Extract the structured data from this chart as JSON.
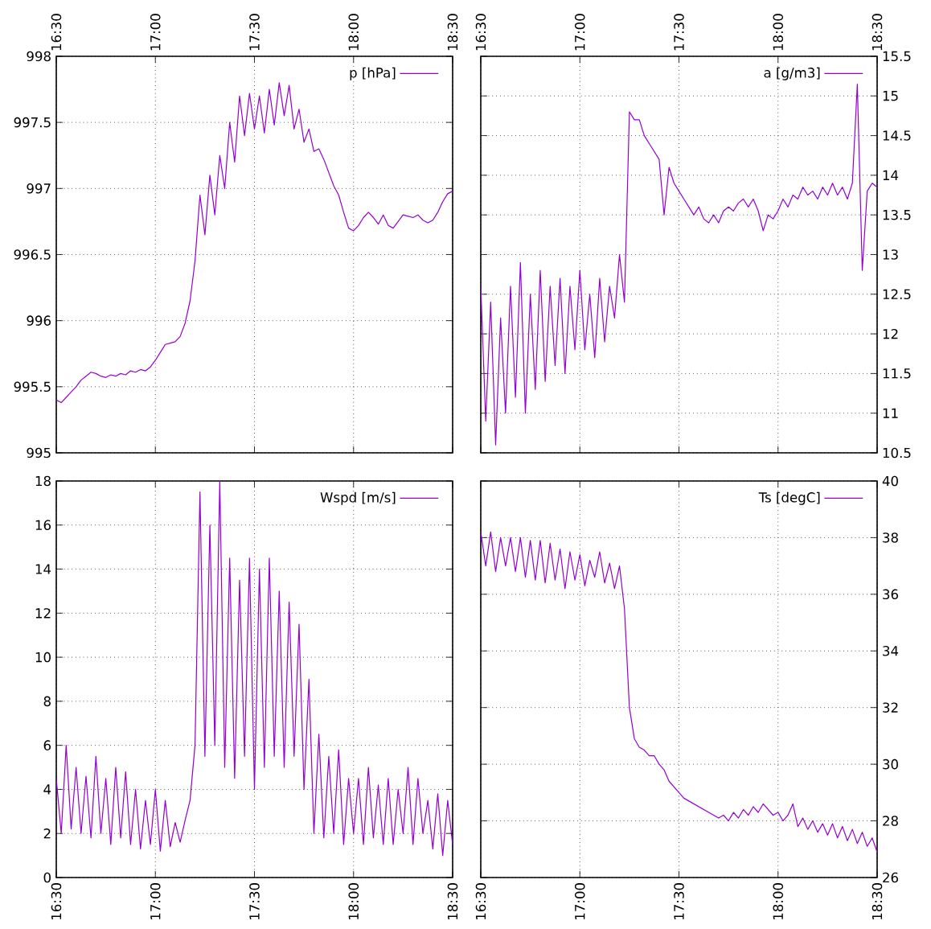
{
  "chart_data": [
    {
      "type": "line",
      "x": [
        16.5,
        16.525,
        16.55,
        16.575,
        16.6,
        16.625,
        16.65,
        16.675,
        16.7,
        16.725,
        16.75,
        16.775,
        16.8,
        16.825,
        16.85,
        16.875,
        16.9,
        16.925,
        16.95,
        16.975,
        17.0,
        17.025,
        17.05,
        17.075,
        17.1,
        17.125,
        17.15,
        17.175,
        17.2,
        17.225,
        17.25,
        17.275,
        17.3,
        17.325,
        17.35,
        17.375,
        17.4,
        17.425,
        17.45,
        17.475,
        17.5,
        17.525,
        17.55,
        17.575,
        17.6,
        17.625,
        17.65,
        17.675,
        17.7,
        17.725,
        17.75,
        17.775,
        17.8,
        17.825,
        17.85,
        17.875,
        17.9,
        17.925,
        17.95,
        17.975,
        18.0,
        18.025,
        18.05,
        18.075,
        18.1,
        18.125,
        18.15,
        18.175,
        18.2,
        18.225,
        18.25,
        18.275,
        18.3,
        18.325,
        18.35,
        18.375,
        18.4,
        18.425,
        18.45,
        18.475,
        18.5
      ],
      "series": [
        {
          "name": "p [hPa]",
          "color": "#9400d3",
          "values": [
            995.4,
            995.38,
            995.42,
            995.46,
            995.5,
            995.55,
            995.58,
            995.61,
            995.6,
            995.58,
            995.57,
            995.59,
            995.58,
            995.6,
            995.59,
            995.62,
            995.61,
            995.63,
            995.62,
            995.65,
            995.7,
            995.76,
            995.82,
            995.83,
            995.84,
            995.88,
            995.98,
            996.15,
            996.45,
            996.95,
            996.65,
            997.1,
            996.8,
            997.25,
            997.0,
            997.5,
            997.2,
            997.7,
            997.4,
            997.72,
            997.45,
            997.7,
            997.42,
            997.75,
            997.48,
            997.8,
            997.55,
            997.78,
            997.45,
            997.6,
            997.35,
            997.45,
            997.28,
            997.3,
            997.22,
            997.12,
            997.02,
            996.95,
            996.82,
            996.7,
            996.68,
            996.72,
            996.78,
            996.82,
            996.78,
            996.73,
            996.8,
            996.72,
            996.7,
            996.75,
            996.8,
            996.79,
            996.78,
            996.8,
            996.76,
            996.74,
            996.76,
            996.82,
            996.9,
            996.96,
            996.98
          ]
        }
      ],
      "xlim": [
        16.5,
        18.5
      ],
      "xticks": [
        {
          "value": 16.5,
          "label": "16:30"
        },
        {
          "value": 17.0,
          "label": "17:00"
        },
        {
          "value": 17.5,
          "label": "17:30"
        },
        {
          "value": 18.0,
          "label": "18:00"
        },
        {
          "value": 18.5,
          "label": "18:30"
        }
      ],
      "ylim": [
        995,
        998
      ],
      "yticks": [
        995,
        995.5,
        996,
        996.5,
        997,
        997.5,
        998
      ],
      "grid": true,
      "legend": "top right"
    },
    {
      "type": "line",
      "x": [
        16.5,
        16.525,
        16.55,
        16.575,
        16.6,
        16.625,
        16.65,
        16.675,
        16.7,
        16.725,
        16.75,
        16.775,
        16.8,
        16.825,
        16.85,
        16.875,
        16.9,
        16.925,
        16.95,
        16.975,
        17.0,
        17.025,
        17.05,
        17.075,
        17.1,
        17.125,
        17.15,
        17.175,
        17.2,
        17.225,
        17.25,
        17.275,
        17.3,
        17.325,
        17.35,
        17.375,
        17.4,
        17.425,
        17.45,
        17.475,
        17.5,
        17.525,
        17.55,
        17.575,
        17.6,
        17.625,
        17.65,
        17.675,
        17.7,
        17.725,
        17.75,
        17.775,
        17.8,
        17.825,
        17.85,
        17.875,
        17.9,
        17.925,
        17.95,
        17.975,
        18.0,
        18.025,
        18.05,
        18.075,
        18.1,
        18.125,
        18.15,
        18.175,
        18.2,
        18.225,
        18.25,
        18.275,
        18.3,
        18.325,
        18.35,
        18.375,
        18.4,
        18.425,
        18.45,
        18.475,
        18.5
      ],
      "series": [
        {
          "name": "a [g/m3]",
          "color": "#9400d3",
          "values": [
            12.6,
            10.9,
            12.4,
            10.6,
            12.2,
            11.0,
            12.6,
            11.2,
            12.9,
            11.0,
            12.5,
            11.3,
            12.8,
            11.4,
            12.6,
            11.6,
            12.7,
            11.5,
            12.6,
            11.8,
            12.8,
            11.8,
            12.5,
            11.7,
            12.7,
            11.9,
            12.6,
            12.2,
            13.0,
            12.4,
            14.8,
            14.7,
            14.7,
            14.5,
            14.4,
            14.3,
            14.2,
            13.5,
            14.1,
            13.9,
            13.8,
            13.7,
            13.6,
            13.5,
            13.6,
            13.45,
            13.4,
            13.5,
            13.4,
            13.55,
            13.6,
            13.55,
            13.65,
            13.7,
            13.6,
            13.7,
            13.55,
            13.3,
            13.5,
            13.45,
            13.55,
            13.7,
            13.6,
            13.75,
            13.7,
            13.85,
            13.75,
            13.8,
            13.7,
            13.85,
            13.75,
            13.9,
            13.75,
            13.85,
            13.7,
            13.9,
            15.15,
            12.8,
            13.8,
            13.9,
            13.85
          ]
        }
      ],
      "xlim": [
        16.5,
        18.5
      ],
      "xticks": [
        {
          "value": 16.5,
          "label": "16:30"
        },
        {
          "value": 17.0,
          "label": "17:00"
        },
        {
          "value": 17.5,
          "label": "17:30"
        },
        {
          "value": 18.0,
          "label": "18:00"
        },
        {
          "value": 18.5,
          "label": "18:30"
        }
      ],
      "ylim": [
        10.5,
        15.5
      ],
      "yticks": [
        10.5,
        11,
        11.5,
        12,
        12.5,
        13,
        13.5,
        14,
        14.5,
        15,
        15.5
      ],
      "grid": true,
      "legend": "top right"
    },
    {
      "type": "line",
      "x": [
        16.5,
        16.525,
        16.55,
        16.575,
        16.6,
        16.625,
        16.65,
        16.675,
        16.7,
        16.725,
        16.75,
        16.775,
        16.8,
        16.825,
        16.85,
        16.875,
        16.9,
        16.925,
        16.95,
        16.975,
        17.0,
        17.025,
        17.05,
        17.075,
        17.1,
        17.125,
        17.15,
        17.175,
        17.2,
        17.225,
        17.25,
        17.275,
        17.3,
        17.325,
        17.35,
        17.375,
        17.4,
        17.425,
        17.45,
        17.475,
        17.5,
        17.525,
        17.55,
        17.575,
        17.6,
        17.625,
        17.65,
        17.675,
        17.7,
        17.725,
        17.75,
        17.775,
        17.8,
        17.825,
        17.85,
        17.875,
        17.9,
        17.925,
        17.95,
        17.975,
        18.0,
        18.025,
        18.05,
        18.075,
        18.1,
        18.125,
        18.15,
        18.175,
        18.2,
        18.225,
        18.25,
        18.275,
        18.3,
        18.325,
        18.35,
        18.375,
        18.4,
        18.425,
        18.45,
        18.475,
        18.5
      ],
      "series": [
        {
          "name": "Wspd [m/s]",
          "color": "#9400d3",
          "values": [
            4.5,
            2.0,
            6.0,
            2.2,
            5.0,
            2.0,
            4.6,
            1.8,
            5.5,
            2.0,
            4.5,
            1.5,
            5.0,
            1.8,
            4.8,
            1.5,
            4.0,
            1.3,
            3.5,
            1.5,
            4.0,
            1.2,
            3.5,
            1.4,
            2.5,
            1.6,
            2.6,
            3.5,
            6.0,
            17.5,
            5.5,
            16.0,
            6.0,
            18.0,
            5.0,
            14.5,
            4.5,
            13.5,
            5.5,
            14.5,
            4.0,
            14.0,
            5.0,
            14.5,
            5.5,
            13.0,
            5.0,
            12.5,
            5.5,
            11.5,
            4.0,
            9.0,
            2.0,
            6.5,
            1.8,
            5.5,
            2.0,
            5.8,
            1.5,
            4.5,
            2.0,
            4.5,
            1.5,
            5.0,
            1.8,
            4.2,
            1.5,
            4.5,
            1.5,
            4.0,
            2.0,
            5.0,
            1.5,
            4.5,
            2.0,
            3.5,
            1.3,
            3.8,
            1.0,
            3.5,
            1.5
          ]
        }
      ],
      "xlim": [
        16.5,
        18.5
      ],
      "xticks": [
        {
          "value": 16.5,
          "label": "16:30"
        },
        {
          "value": 17.0,
          "label": "17:00"
        },
        {
          "value": 17.5,
          "label": "17:30"
        },
        {
          "value": 18.0,
          "label": "18:00"
        },
        {
          "value": 18.5,
          "label": "18:30"
        }
      ],
      "ylim": [
        0,
        18
      ],
      "yticks": [
        0,
        2,
        4,
        6,
        8,
        10,
        12,
        14,
        16,
        18
      ],
      "grid": true,
      "legend": "top right"
    },
    {
      "type": "line",
      "x": [
        16.5,
        16.525,
        16.55,
        16.575,
        16.6,
        16.625,
        16.65,
        16.675,
        16.7,
        16.725,
        16.75,
        16.775,
        16.8,
        16.825,
        16.85,
        16.875,
        16.9,
        16.925,
        16.95,
        16.975,
        17.0,
        17.025,
        17.05,
        17.075,
        17.1,
        17.125,
        17.15,
        17.175,
        17.2,
        17.225,
        17.25,
        17.275,
        17.3,
        17.325,
        17.35,
        17.375,
        17.4,
        17.425,
        17.45,
        17.475,
        17.5,
        17.525,
        17.55,
        17.575,
        17.6,
        17.625,
        17.65,
        17.675,
        17.7,
        17.725,
        17.75,
        17.775,
        17.8,
        17.825,
        17.85,
        17.875,
        17.9,
        17.925,
        17.95,
        17.975,
        18.0,
        18.025,
        18.05,
        18.075,
        18.1,
        18.125,
        18.15,
        18.175,
        18.2,
        18.225,
        18.25,
        18.275,
        18.3,
        18.325,
        18.35,
        18.375,
        18.4,
        18.425,
        18.45,
        18.475,
        18.5
      ],
      "series": [
        {
          "name": "Ts [degC]",
          "color": "#9400d3",
          "values": [
            38.2,
            37.0,
            38.2,
            36.8,
            38.0,
            37.0,
            38.0,
            36.8,
            38.0,
            36.6,
            37.9,
            36.5,
            37.9,
            36.4,
            37.8,
            36.5,
            37.6,
            36.2,
            37.5,
            36.5,
            37.4,
            36.3,
            37.2,
            36.6,
            37.5,
            36.4,
            37.1,
            36.2,
            37.0,
            35.5,
            32.0,
            30.9,
            30.6,
            30.5,
            30.3,
            30.3,
            30.0,
            29.8,
            29.4,
            29.2,
            29.0,
            28.8,
            28.7,
            28.6,
            28.5,
            28.4,
            28.3,
            28.2,
            28.1,
            28.2,
            28.0,
            28.3,
            28.1,
            28.4,
            28.2,
            28.5,
            28.3,
            28.6,
            28.4,
            28.2,
            28.3,
            28.0,
            28.2,
            28.6,
            27.8,
            28.1,
            27.7,
            28.0,
            27.6,
            27.9,
            27.5,
            27.9,
            27.4,
            27.8,
            27.3,
            27.7,
            27.2,
            27.6,
            27.1,
            27.4,
            26.9
          ]
        }
      ],
      "xlim": [
        16.5,
        18.5
      ],
      "xticks": [
        {
          "value": 16.5,
          "label": "16:30"
        },
        {
          "value": 17.0,
          "label": "17:00"
        },
        {
          "value": 17.5,
          "label": "17:30"
        },
        {
          "value": 18.0,
          "label": "18:00"
        },
        {
          "value": 18.5,
          "label": "18:30"
        }
      ],
      "ylim": [
        26,
        40
      ],
      "yticks": [
        26,
        28,
        30,
        32,
        34,
        36,
        38,
        40
      ],
      "grid": true,
      "legend": "top right"
    }
  ]
}
